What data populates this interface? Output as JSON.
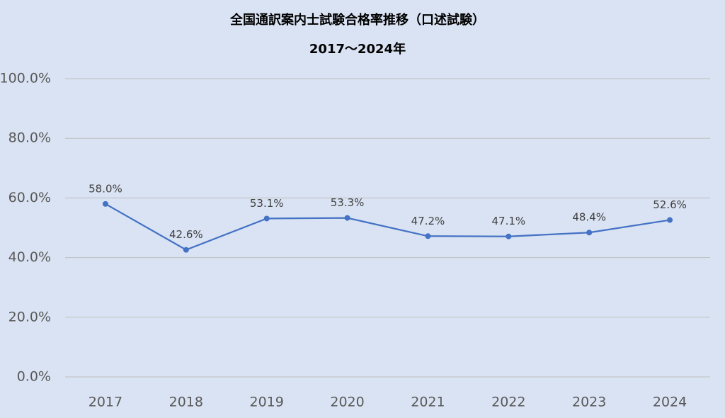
{
  "chart_data": {
    "type": "line",
    "title": "全国通訳案内士試験合格率推移（口述試験）",
    "subtitle": "2017〜2024年",
    "categories": [
      "2017",
      "2018",
      "2019",
      "2020",
      "2021",
      "2022",
      "2023",
      "2024"
    ],
    "series": [
      {
        "color": "#4472c4",
        "values": [
          58.0,
          42.6,
          53.1,
          53.3,
          47.2,
          47.1,
          48.4,
          52.6
        ],
        "value_labels": [
          "58.0%",
          "42.6%",
          "53.1%",
          "53.3%",
          "47.2%",
          "47.1%",
          "48.4%",
          "52.6%"
        ]
      }
    ],
    "ylim": [
      0,
      100
    ],
    "yticks": [
      {
        "value": 0,
        "label": "0.0%"
      },
      {
        "value": 20,
        "label": "20.0%"
      },
      {
        "value": 40,
        "label": "40.0%"
      },
      {
        "value": 60,
        "label": "60.0%"
      },
      {
        "value": 80,
        "label": "80.0%"
      },
      {
        "value": 100,
        "label": "100.0%"
      }
    ],
    "grid": true
  }
}
